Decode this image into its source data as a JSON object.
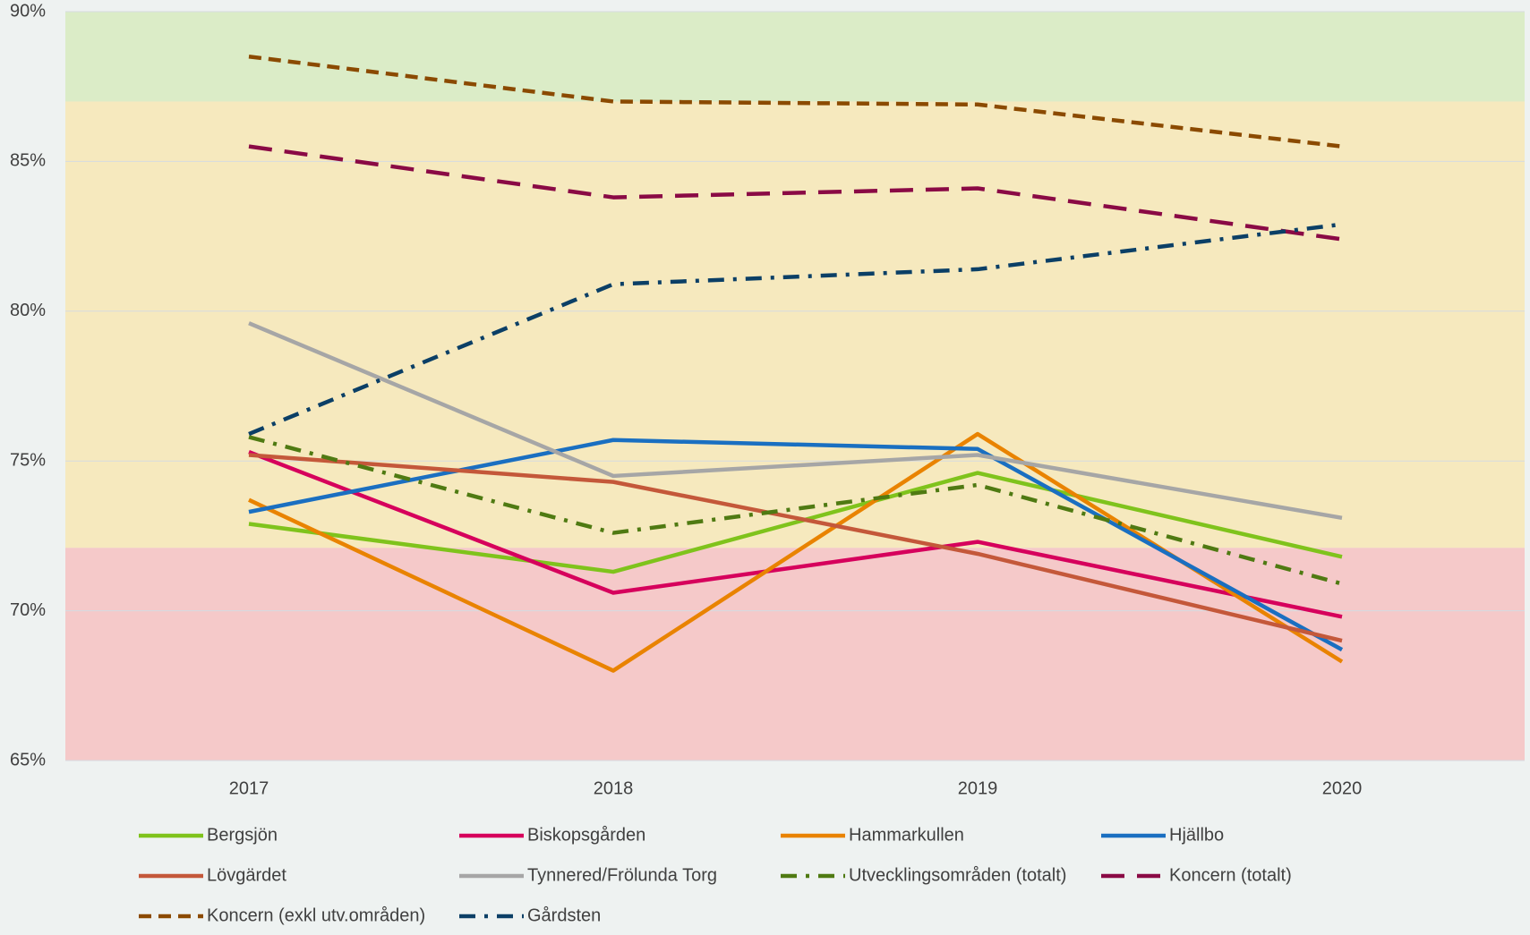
{
  "chart_data": {
    "type": "line",
    "categories": [
      "2017",
      "2018",
      "2019",
      "2020"
    ],
    "ylim": [
      65,
      90
    ],
    "yticks": [
      {
        "value": 65,
        "label": "65%"
      },
      {
        "value": 70,
        "label": "70%"
      },
      {
        "value": 75,
        "label": "75%"
      },
      {
        "value": 80,
        "label": "80%"
      },
      {
        "value": 85,
        "label": "85%"
      },
      {
        "value": 90,
        "label": "90%"
      }
    ],
    "grid": true,
    "bands": [
      {
        "from": 87,
        "to": 90,
        "color": "#d7ebbf"
      },
      {
        "from": 72.1,
        "to": 87,
        "color": "#f7e8b5"
      },
      {
        "from": 65,
        "to": 72.1,
        "color": "#f6c2c2"
      }
    ],
    "legend": "bottom",
    "series": [
      {
        "name": "Bergsjön",
        "color": "#7fc31c",
        "style": "solid",
        "values": [
          72.9,
          71.3,
          74.6,
          71.8
        ]
      },
      {
        "name": "Biskopsgården",
        "color": "#d6005c",
        "style": "solid",
        "values": [
          75.3,
          70.6,
          72.3,
          69.8
        ]
      },
      {
        "name": "Hammarkullen",
        "color": "#e98300",
        "style": "solid",
        "values": [
          73.7,
          68.0,
          75.9,
          68.3
        ]
      },
      {
        "name": "Hjällbo",
        "color": "#1a6fc1",
        "style": "solid",
        "values": [
          73.3,
          75.7,
          75.4,
          68.7
        ]
      },
      {
        "name": "Lövgärdet",
        "color": "#c4583a",
        "style": "solid",
        "values": [
          75.2,
          74.3,
          71.9,
          69.0
        ]
      },
      {
        "name": "Tynnered/Frölunda Torg",
        "color": "#a6a6a6",
        "style": "solid",
        "values": [
          79.6,
          74.5,
          75.2,
          73.1
        ]
      },
      {
        "name": "Utvecklingsområden (totalt)",
        "color": "#4f7a12",
        "style": "dashdot",
        "values": [
          75.8,
          72.6,
          74.2,
          70.9
        ]
      },
      {
        "name": "Koncern (totalt)",
        "color": "#8a0a45",
        "style": "longdash",
        "values": [
          85.5,
          83.8,
          84.1,
          82.4
        ]
      },
      {
        "name": "Koncern (exkl utv.områden)",
        "color": "#8b4a00",
        "style": "dash",
        "values": [
          88.5,
          87.0,
          86.9,
          85.5
        ]
      },
      {
        "name": "Gårdsten",
        "color": "#0b3f66",
        "style": "dashdot",
        "values": [
          75.9,
          80.9,
          81.4,
          82.9
        ]
      }
    ]
  }
}
